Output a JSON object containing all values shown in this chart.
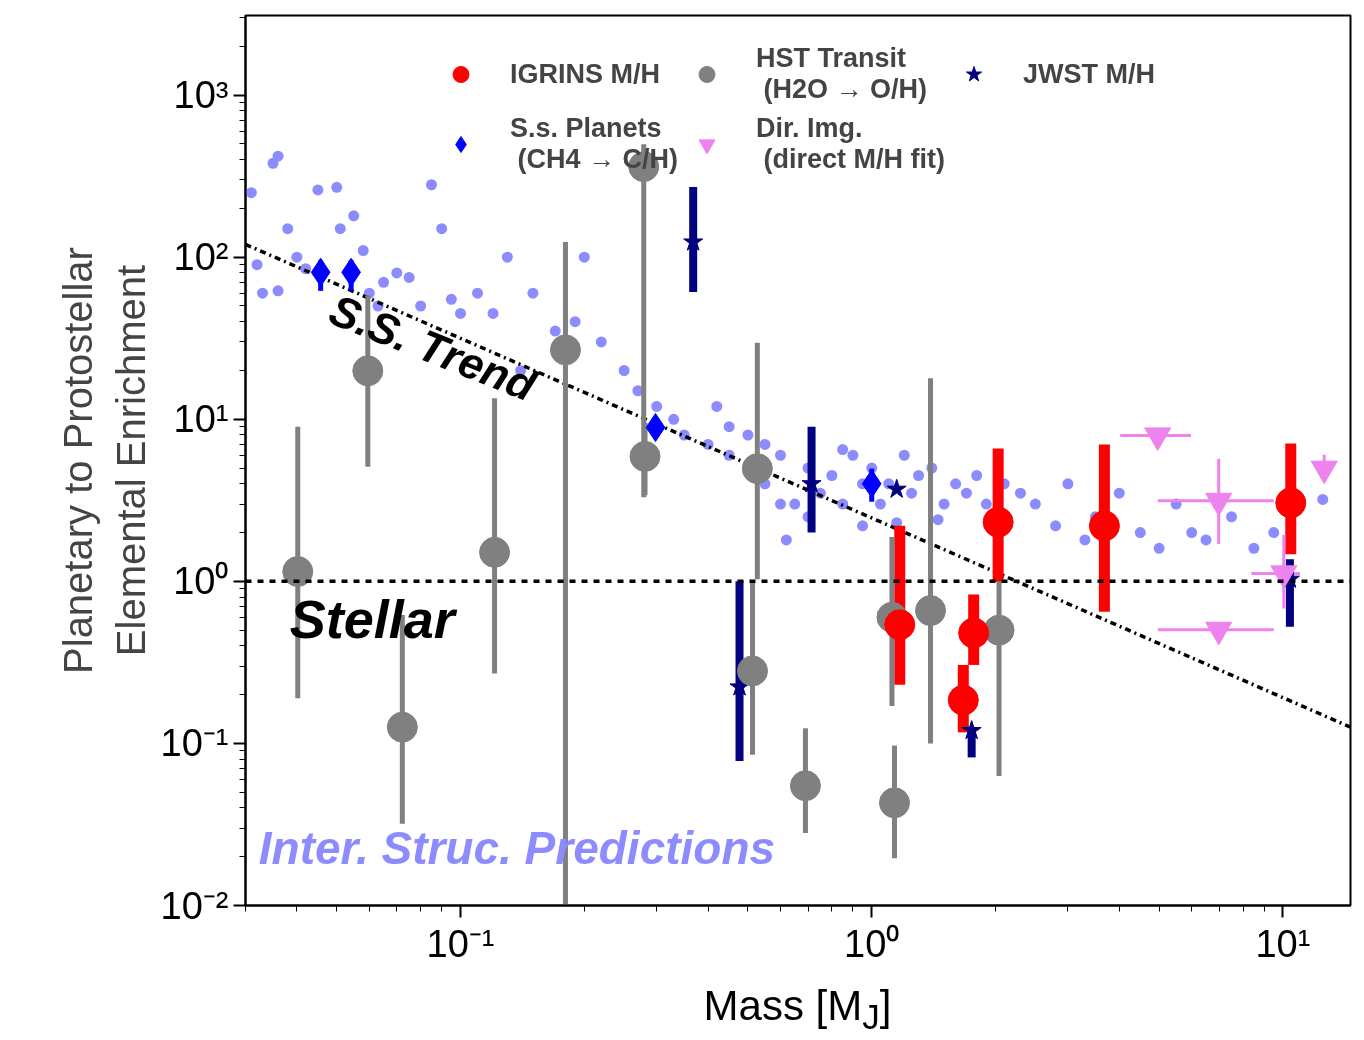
{
  "chart_data": {
    "type": "scatter",
    "log": "xy",
    "xlabel": "Mass [M$_{J}$]",
    "ylabel": "Planetary to Protostellar\nElemental Enrichment",
    "xlim": [
      0.03,
      14.6
    ],
    "ylim": [
      0.01,
      3100
    ],
    "xticks": [
      {
        "value": 0.1,
        "label": "10⁻¹"
      },
      {
        "value": 1,
        "label": "10⁰"
      },
      {
        "value": 10,
        "label": "10¹"
      }
    ],
    "yticks": [
      {
        "value": 0.01,
        "label": "10⁻²"
      },
      {
        "value": 0.1,
        "label": "10⁻¹"
      },
      {
        "value": 1,
        "label": "10⁰"
      },
      {
        "value": 10,
        "label": "10¹"
      },
      {
        "value": 100,
        "label": "10²"
      },
      {
        "value": 1000,
        "label": "10³"
      }
    ],
    "legend": "top",
    "ref_lines": [
      {
        "axis": "y",
        "value": 1,
        "label": "Stellar",
        "line_style": "dashed",
        "color": "#000000"
      }
    ],
    "series": [
      {
        "name": "Inter. Struc. Predictions",
        "marker": "circle",
        "color": "#8c8cff",
        "x": [
          0.031,
          0.035,
          0.036,
          0.032,
          0.033,
          0.036,
          0.038,
          0.04,
          0.042,
          0.045,
          0.05,
          0.051,
          0.055,
          0.058,
          0.06,
          0.063,
          0.065,
          0.07,
          0.075,
          0.08,
          0.085,
          0.09,
          0.095,
          0.1,
          0.11,
          0.12,
          0.13,
          0.14,
          0.15,
          0.17,
          0.19,
          0.2,
          0.22,
          0.25,
          0.27,
          0.3,
          0.33,
          0.35,
          0.4,
          0.42,
          0.45,
          0.55,
          0.6,
          0.65,
          0.7,
          0.75,
          0.8,
          0.85,
          0.9,
          0.95,
          1.0,
          1.05,
          1.1,
          1.2,
          1.25,
          1.3,
          1.4,
          1.5,
          1.6,
          1.7,
          1.8,
          1.9,
          2.1,
          2.3,
          2.5,
          2.8,
          3.0,
          3.3,
          3.5,
          4.0,
          4.5,
          5.0,
          5.5,
          6.0,
          6.5,
          7.5,
          8.5,
          9.5,
          12.5,
          0.6,
          0.55,
          0.45,
          0.7,
          0.85,
          0.95,
          1.15,
          1.45,
          0.5,
          0.62
        ],
        "values": [
          250,
          380,
          420,
          90,
          60,
          62,
          150,
          100,
          85,
          260,
          270,
          150,
          180,
          110,
          60,
          50,
          70,
          80,
          75,
          50,
          280,
          150,
          55,
          45,
          60,
          45,
          100,
          20,
          60,
          35,
          40,
          100,
          30,
          20,
          15,
          12,
          10,
          8,
          7,
          12,
          6,
          4,
          6,
          3,
          5,
          3.5,
          4.5,
          3,
          6,
          4,
          5,
          3,
          4,
          6,
          3.5,
          4.5,
          5,
          3,
          4,
          3.5,
          4.5,
          3,
          4,
          3.5,
          3,
          2.2,
          4,
          1.8,
          2.5,
          3.5,
          2,
          1.6,
          3,
          2,
          1.8,
          2.5,
          1.6,
          2,
          3.2,
          3,
          7,
          9,
          2.5,
          6.5,
          2.2,
          2.3,
          2.4,
          8,
          1.8
        ]
      },
      {
        "name": "S.S. Trend",
        "type": "line",
        "line_style": "dashdot",
        "color": "#000000",
        "x": [
          0.03,
          14.6
        ],
        "values": [
          120,
          0.126
        ]
      },
      {
        "name": "IGRINS M/H",
        "marker": "circle",
        "color": "#ff0000",
        "x": [
          1.17,
          1.67,
          1.77,
          2.03,
          3.68,
          10.45
        ],
        "values": [
          0.54,
          0.185,
          0.48,
          2.32,
          2.2,
          3.05
        ],
        "errors": [
          [
            0.23,
            2.2
          ],
          [
            0.117,
            0.305
          ],
          [
            0.305,
            0.83
          ],
          [
            0.99,
            6.6
          ],
          [
            0.65,
            7.0
          ],
          [
            1.47,
            7.1
          ]
        ]
      },
      {
        "name": "S.s. Planets\n (CH4 → C/H)",
        "marker": "diamond",
        "color": "#0000ff",
        "x": [
          0.0457,
          0.0542,
          0.298,
          1.0
        ],
        "values": [
          80.7,
          80.7,
          8.9,
          4.0
        ],
        "errors": [
          [
            62,
            95.6
          ],
          [
            62,
            95.6
          ],
          null,
          [
            3.1,
            4.96
          ]
        ]
      },
      {
        "name": "HST Transit\n (H2O → O/H)",
        "marker": "circle",
        "color": "#808080",
        "x": [
          0.0402,
          0.0595,
          0.0722,
          0.121,
          0.18,
          0.279,
          0.281,
          0.527,
          0.513,
          0.69,
          1.136,
          1.12,
          1.39,
          2.04
        ],
        "values": [
          1.15,
          19.9,
          0.126,
          1.51,
          26.8,
          362,
          5.9,
          4.96,
          0.28,
          0.0548,
          0.043,
          0.6,
          0.66,
          0.5
        ],
        "errors": [
          [
            0.19,
            9.0
          ],
          [
            5.1,
            58
          ],
          [
            0.032,
            0.62
          ],
          [
            0.27,
            13.5
          ],
          [
            0.01,
            124
          ],
          [
            3.3,
            497
          ],
          [
            3.4,
            9.5
          ],
          [
            1.03,
            29.7
          ],
          [
            0.085,
            1.0
          ],
          [
            0.028,
            0.124
          ],
          [
            0.0196,
            0.097
          ],
          [
            0.17,
            1.88
          ],
          [
            0.1,
            17.9
          ],
          [
            0.063,
            1.0
          ]
        ]
      },
      {
        "name": "Dir. Img.\n (direct M/H fit)",
        "marker": "triangle",
        "color": "#ee82ee",
        "x": [
          4.96,
          6.98,
          6.98,
          10.05,
          12.6
        ],
        "values": [
          7.95,
          3.14,
          0.503,
          1.12,
          4.96
        ],
        "errors": [
          null,
          [
            1.7,
            5.7
          ],
          null,
          [
            0.68,
            1.93
          ],
          [
            4.6,
            6.05
          ]
        ],
        "xerrors": [
          [
            4.02,
            5.98
          ],
          [
            4.96,
            9.5
          ],
          [
            4.96,
            9.5
          ],
          [
            8.38,
            11.0
          ],
          null
        ]
      },
      {
        "name": "JWST M/H",
        "marker": "star",
        "color": "#000080",
        "x": [
          0.368,
          0.477,
          0.714,
          1.15,
          1.75,
          10.4
        ],
        "values": [
          124,
          0.223,
          4.0,
          3.7,
          0.12,
          1.03
        ],
        "errors": [
          [
            61,
            271
          ],
          [
            0.078,
            1.0
          ],
          [
            2.0,
            9.0
          ],
          null,
          [
            0.082,
            0.12
          ],
          [
            0.525,
            1.37
          ]
        ]
      }
    ]
  }
}
